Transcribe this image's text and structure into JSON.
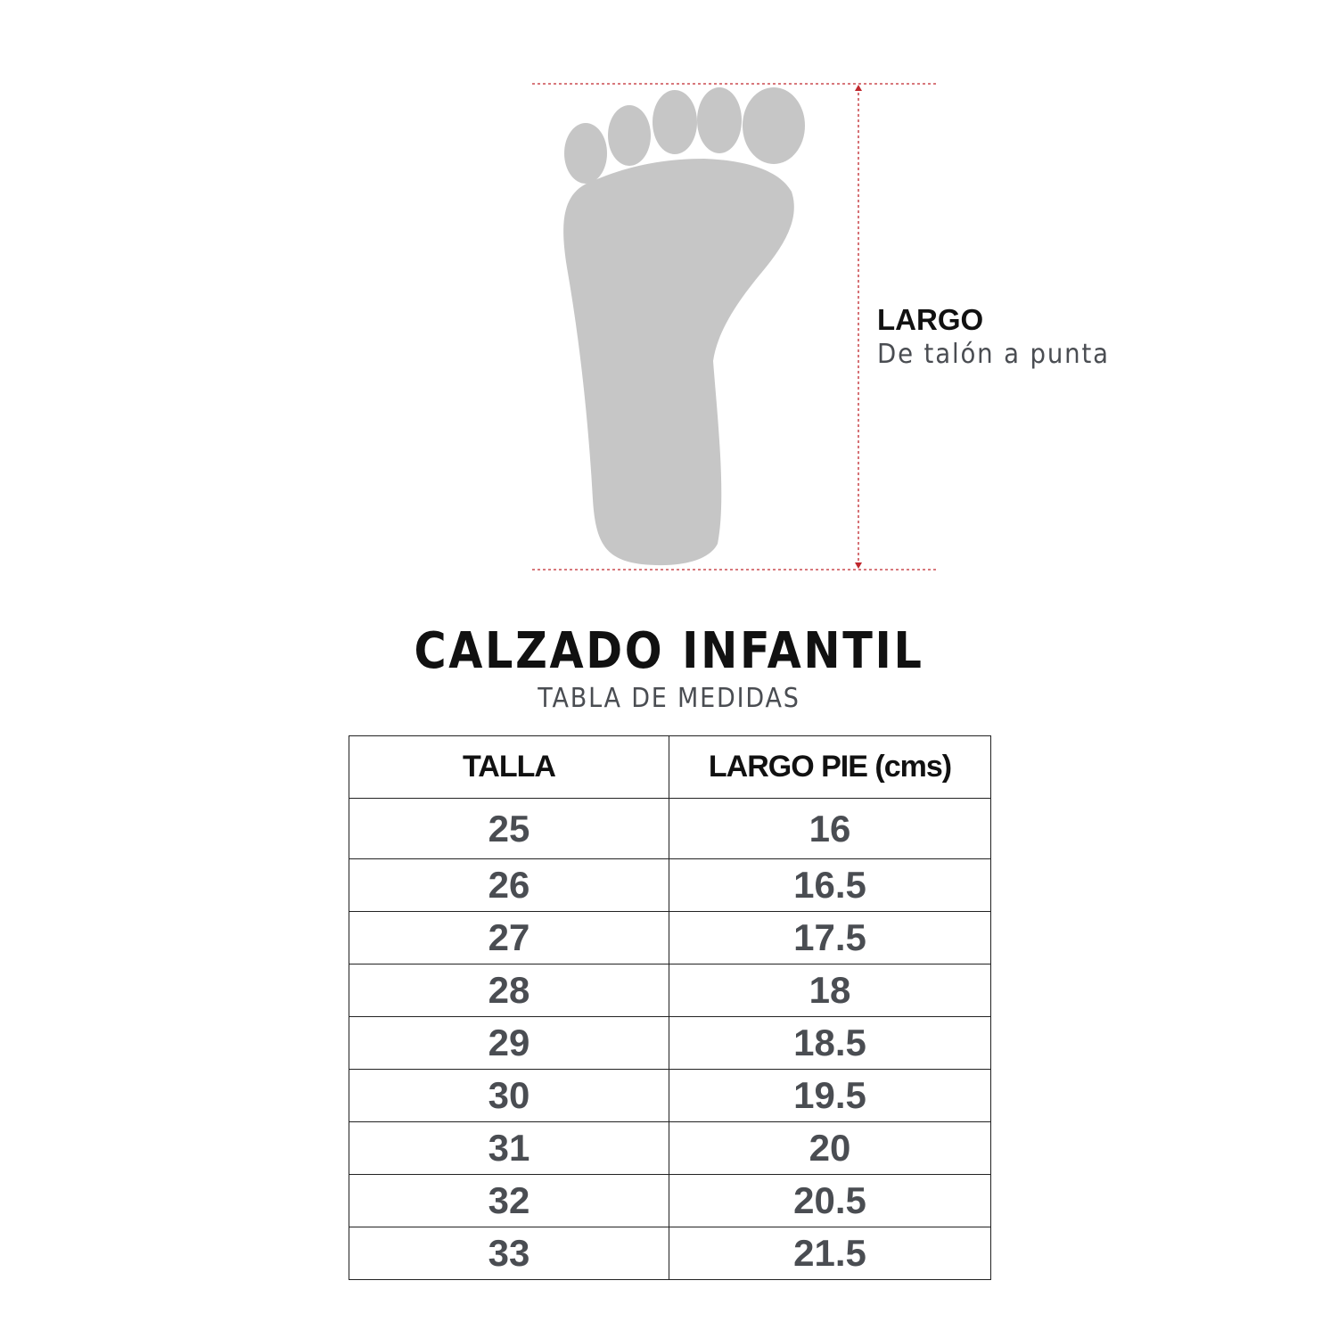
{
  "measure": {
    "title": "LARGO",
    "subtitle": "De talón a punta",
    "guide_color": "#c0272d",
    "foot_color": "#c6c6c6"
  },
  "header": {
    "title": "CALZADO INFANTIL",
    "subtitle": "TABLA DE MEDIDAS"
  },
  "table": {
    "columns": [
      "TALLA",
      "LARGO PIE (cms)"
    ],
    "rows": [
      [
        "25",
        "16"
      ],
      [
        "26",
        "16.5"
      ],
      [
        "27",
        "17.5"
      ],
      [
        "28",
        "18"
      ],
      [
        "29",
        "18.5"
      ],
      [
        "30",
        "19.5"
      ],
      [
        "31",
        "20"
      ],
      [
        "32",
        "20.5"
      ],
      [
        "33",
        "21.5"
      ]
    ]
  }
}
